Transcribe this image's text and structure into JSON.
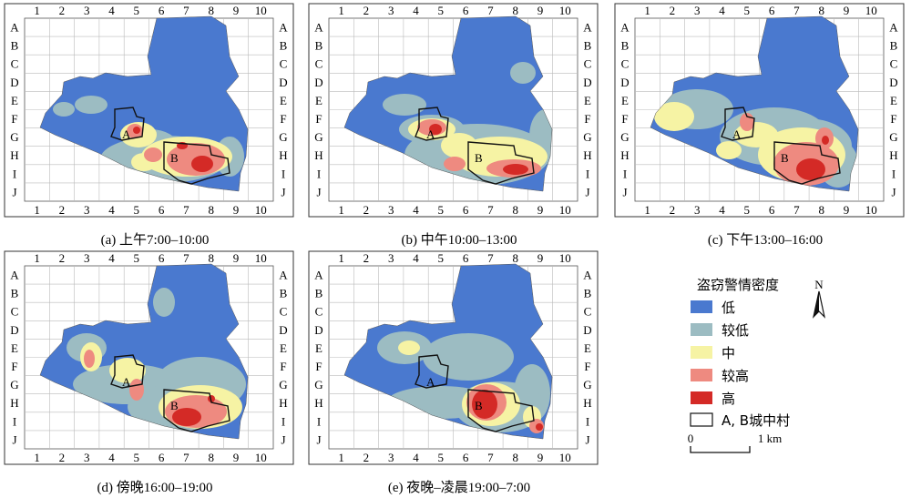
{
  "grid": {
    "columns": [
      "1",
      "2",
      "3",
      "4",
      "5",
      "6",
      "7",
      "8",
      "9",
      "10"
    ],
    "rows": [
      "A",
      "B",
      "C",
      "D",
      "E",
      "F",
      "G",
      "H",
      "I",
      "J"
    ]
  },
  "village_labels": {
    "a": "A",
    "b": "B"
  },
  "panels": [
    {
      "id": "a",
      "caption": "(a) 上午7:00–10:00"
    },
    {
      "id": "b",
      "caption": "(b) 中午10:00–13:00"
    },
    {
      "id": "c",
      "caption": "(c) 下午13:00–16:00"
    },
    {
      "id": "d",
      "caption": "(d) 傍晚16:00–19:00"
    },
    {
      "id": "e",
      "caption": "(e) 夜晚–凌晨19:00–7:00"
    }
  ],
  "legend": {
    "title": "盗窃警情密度",
    "items": [
      {
        "label": "低",
        "color": "#4a79cf"
      },
      {
        "label": "较低",
        "color": "#9cbcc2"
      },
      {
        "label": "中",
        "color": "#f6f3a4"
      },
      {
        "label": "较高",
        "color": "#ee8a80"
      },
      {
        "label": "高",
        "color": "#d42a26"
      }
    ],
    "village_item": "A, B城中村",
    "north_label": "N",
    "scale_start": "0",
    "scale_end": "1 km"
  }
}
